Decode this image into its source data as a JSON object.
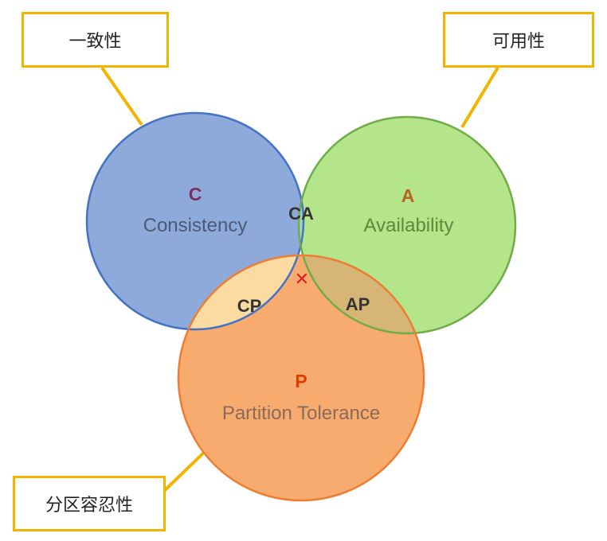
{
  "callouts": {
    "consistency": "一致性",
    "availability": "可用性",
    "partition": "分区容忍性"
  },
  "circles": {
    "c": {
      "letter": "C",
      "name": "Consistency"
    },
    "a": {
      "letter": "A",
      "name": "Availability"
    },
    "p": {
      "letter": "P",
      "name": "Partition Tolerance"
    }
  },
  "intersections": {
    "ca": "CA",
    "cp": "CP",
    "ap": "AP",
    "center_mark": "✕"
  },
  "colors": {
    "consistency_fill": "#8eaadb",
    "consistency_stroke": "#4472c4",
    "availability_fill": "#b4e58a",
    "availability_stroke": "#70ad47",
    "partition_fill": "#f8ab6e",
    "partition_stroke": "#ed7d31",
    "callout_border": "#f2b400",
    "c_letter": "#7a2e5e",
    "a_letter": "#b4641e",
    "p_letter": "#e03c00",
    "center_mark": "#e01e1e"
  }
}
